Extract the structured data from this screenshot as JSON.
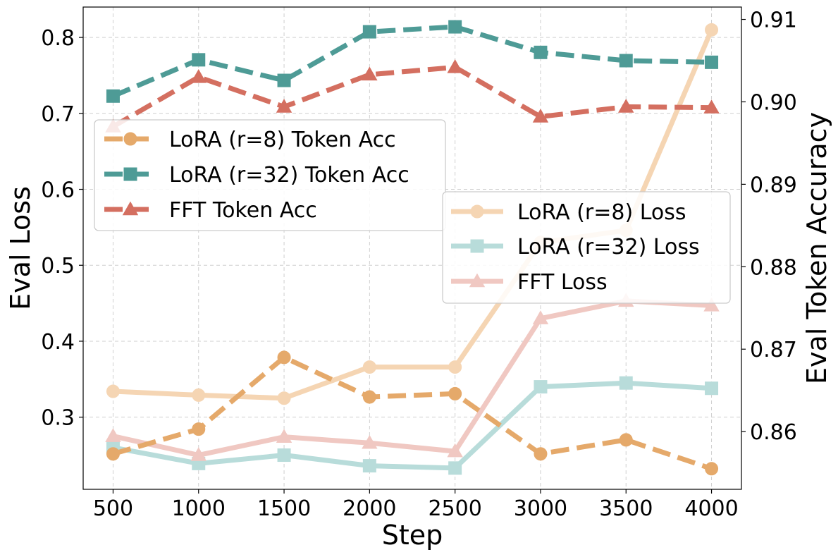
{
  "chart_data": {
    "type": "line",
    "x": [
      500,
      1000,
      1500,
      2000,
      2500,
      3000,
      3500,
      4000
    ],
    "xlabel": "Step",
    "ylabel_left": "Eval Loss",
    "ylabel_right": "Eval Token Accuracy",
    "xlim": [
      325,
      4175
    ],
    "ylim_left": [
      0.205,
      0.84
    ],
    "ylim_right": [
      0.853,
      0.9115
    ],
    "x_ticks": [
      500,
      1000,
      1500,
      2000,
      2500,
      3000,
      3500,
      4000
    ],
    "left_ticks": [
      0.3,
      0.4,
      0.5,
      0.6,
      0.7,
      0.8
    ],
    "right_ticks": [
      0.86,
      0.87,
      0.88,
      0.89,
      0.9,
      0.91
    ],
    "x_tick_labels": [
      "500",
      "1000",
      "1500",
      "2000",
      "2500",
      "3000",
      "3500",
      "4000"
    ],
    "left_tick_labels": [
      "0.3",
      "0.4",
      "0.5",
      "0.6",
      "0.7",
      "0.8"
    ],
    "right_tick_labels": [
      "0.86",
      "0.87",
      "0.88",
      "0.89",
      "0.90",
      "0.91"
    ],
    "grid": true,
    "loss_series": [
      {
        "name": "LoRA (r=8) Loss",
        "axis": "left",
        "color": "#f5d5b3",
        "marker": "circle",
        "dashed": false,
        "values": [
          0.334,
          0.329,
          0.325,
          0.366,
          0.366,
          0.53,
          0.546,
          0.81
        ]
      },
      {
        "name": "LoRA (r=32) Loss",
        "axis": "left",
        "color": "#b8dcda",
        "marker": "square",
        "dashed": false,
        "values": [
          0.26,
          0.239,
          0.25,
          0.236,
          0.233,
          0.34,
          0.345,
          0.338
        ]
      },
      {
        "name": "FFT Loss",
        "axis": "left",
        "color": "#f0c8c2",
        "marker": "triangle",
        "dashed": false,
        "values": [
          0.275,
          0.25,
          0.274,
          0.266,
          0.255,
          0.43,
          0.453,
          0.447
        ]
      }
    ],
    "acc_series": [
      {
        "name": "LoRA (r=8) Token Acc",
        "axis": "right",
        "color": "#e5a96a",
        "marker": "circle",
        "dashed": true,
        "values": [
          0.8573,
          0.8603,
          0.869,
          0.8642,
          0.8646,
          0.8573,
          0.859,
          0.8555
        ]
      },
      {
        "name": "LoRA (r=32) Token Acc",
        "axis": "right",
        "color": "#4e9b96",
        "marker": "square",
        "dashed": true,
        "values": [
          0.9007,
          0.9051,
          0.9026,
          0.9085,
          0.9091,
          0.906,
          0.905,
          0.9048
        ]
      },
      {
        "name": "FFT Token Acc",
        "axis": "right",
        "color": "#d46f60",
        "marker": "triangle",
        "dashed": true,
        "values": [
          0.897,
          0.903,
          0.8994,
          0.9033,
          0.9042,
          0.8982,
          0.8994,
          0.8993
        ]
      }
    ],
    "legends": [
      {
        "position": "upper-left",
        "entries": [
          "LoRA (r=8) Token Acc",
          "LoRA (r=32) Token Acc",
          "FFT Token Acc"
        ]
      },
      {
        "position": "center-right",
        "entries": [
          "LoRA (r=8) Loss",
          "LoRA (r=32) Loss",
          "FFT Loss"
        ]
      }
    ]
  }
}
